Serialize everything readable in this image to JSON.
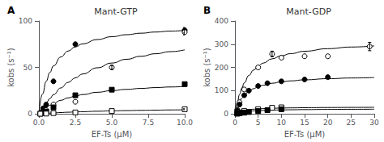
{
  "chart_data": [
    {
      "type": "scatter",
      "annotation": "A",
      "title": "Mant-GTP",
      "xlabel": "EF-Ts (μM)",
      "ylabel": "kobs (s⁻¹)",
      "xlim": [
        0,
        10
      ],
      "xticks": [
        {
          "value": 0,
          "label": "0.0"
        },
        2.5,
        {
          "value": 5.0,
          "label": "5.0"
        },
        7.5,
        {
          "value": 10,
          "label": "10.0"
        }
      ],
      "ylim": [
        0,
        100
      ],
      "yticks": [
        0,
        50,
        100
      ],
      "grid": false,
      "series": [
        {
          "type": "scatter",
          "marker": "circle",
          "color": "#000000",
          "x": [
            0.1,
            0.3,
            0.5,
            1.0,
            2.5,
            10.0
          ],
          "values": [
            1.0,
            6.0,
            10.0,
            35.0,
            75.0,
            90.0
          ],
          "yerr": [
            null,
            null,
            null,
            null,
            null,
            3.0
          ]
        },
        {
          "type": "line",
          "line_style": "solid",
          "color": "#000000",
          "x": [
            0,
            0.25,
            0.5,
            0.75,
            1,
            1.5,
            2,
            2.5,
            3,
            4,
            5,
            6,
            7,
            8,
            9,
            10
          ],
          "values": [
            0,
            21.3,
            35.0,
            44.55,
            51.58,
            61.25,
            67.59,
            72.06,
            75.38,
            80.0,
            83.05,
            85.22,
            86.84,
            88.09,
            89.09,
            89.91
          ]
        },
        {
          "type": "scatter",
          "marker": "open circle",
          "color": "#000000",
          "x": [
            0.1,
            0.3,
            0.5,
            1.0,
            2.5,
            5.0,
            10.0
          ],
          "values": [
            0.5,
            2.0,
            4.0,
            10.0,
            13.0,
            50.0,
            88.0
          ],
          "yerr": [
            null,
            null,
            null,
            null,
            null,
            2.0,
            3.0
          ]
        },
        {
          "type": "line",
          "line_style": "solid",
          "color": "#000000",
          "x": [
            0,
            0.25,
            0.5,
            0.75,
            1,
            1.5,
            2,
            2.5,
            3,
            4,
            5,
            6,
            7,
            8,
            9,
            10
          ],
          "values": [
            0,
            6.2,
            11.63,
            16.41,
            20.67,
            27.9,
            33.82,
            38.75,
            42.92,
            49.6,
            54.71,
            58.74,
            62.0,
            64.7,
            66.96,
            68.89
          ]
        },
        {
          "type": "scatter",
          "marker": "square",
          "color": "#000000",
          "x": [
            0.1,
            0.3,
            0.5,
            1.0,
            2.5,
            5.0,
            10.0
          ],
          "values": [
            0.2,
            1.0,
            2.5,
            7.0,
            20.0,
            26.0,
            32.0
          ],
          "yerr": [
            null,
            null,
            null,
            null,
            null,
            null,
            1.5
          ]
        },
        {
          "type": "line",
          "line_style": "solid",
          "color": "#000000",
          "x": [
            0,
            0.25,
            0.5,
            0.75,
            1,
            1.5,
            2,
            2.5,
            3,
            4,
            5,
            6,
            7,
            8,
            9,
            10
          ],
          "values": [
            0,
            3.67,
            6.67,
            9.15,
            11.25,
            14.59,
            17.14,
            19.15,
            20.77,
            23.23,
            25.0,
            26.34,
            27.39,
            28.24,
            28.93,
            29.51
          ]
        },
        {
          "type": "scatter",
          "marker": "open square",
          "color": "#000000",
          "x": [
            0.1,
            0.5,
            1.0,
            2.5,
            5.0,
            10.0
          ],
          "values": [
            0.1,
            0.3,
            0.8,
            1.5,
            3.0,
            5.0
          ],
          "yerr": [
            null,
            null,
            null,
            null,
            null,
            0.5
          ]
        },
        {
          "type": "line",
          "line_style": "solid",
          "color": "#000000",
          "x": [
            0,
            0.25,
            0.5,
            0.75,
            1,
            1.5,
            2,
            2.5,
            3,
            4,
            5,
            6,
            7,
            8,
            9,
            10
          ],
          "values": [
            0,
            0.28,
            0.54,
            0.78,
            1.0,
            1.4,
            1.75,
            2.06,
            2.33,
            2.8,
            3.18,
            3.5,
            3.77,
            4.0,
            4.2,
            4.38
          ]
        }
      ]
    },
    {
      "type": "scatter",
      "annotation": "B",
      "title": "Mant-GDP",
      "xlabel": "EF-Ts (μM)",
      "ylabel": "kobs (s⁻¹)",
      "xlim": [
        0,
        30
      ],
      "xticks": [
        0,
        5,
        10,
        15,
        20,
        25,
        30
      ],
      "ylim": [
        0,
        400
      ],
      "yticks": [
        0,
        100,
        200,
        300,
        400
      ],
      "grid": false,
      "series": [
        {
          "type": "scatter",
          "marker": "open circle",
          "color": "#000000",
          "x": [
            0.5,
            1.0,
            2.0,
            5.0,
            8.0,
            10.0,
            15.0,
            20.0,
            29.0
          ],
          "values": [
            18.0,
            50.0,
            105.0,
            200.0,
            258.0,
            242.0,
            248.0,
            248.0,
            290.0
          ],
          "yerr": [
            null,
            null,
            null,
            null,
            12.0,
            null,
            null,
            null,
            18.0
          ]
        },
        {
          "type": "line",
          "line_style": "solid",
          "color": "#000000",
          "x": [
            0,
            0.5,
            1,
            1.5,
            2,
            3,
            4,
            5,
            6,
            8,
            10,
            12,
            15,
            20,
            25,
            30
          ],
          "values": [
            0,
            48.48,
            84.21,
            111.63,
            133.33,
            165.52,
            188.24,
            205.13,
            218.18,
            237.04,
            250.0,
            259.46,
            269.66,
            280.7,
            287.77,
            292.68
          ]
        },
        {
          "type": "scatter",
          "marker": "circle",
          "color": "#000000",
          "x": [
            0.5,
            1.0,
            2.0,
            3.0,
            5.0,
            7.0,
            10.0,
            15.0,
            20.0
          ],
          "values": [
            15.0,
            40.0,
            80.0,
            100.0,
            120.0,
            132.0,
            140.0,
            148.0,
            158.0
          ],
          "yerr": [
            null,
            null,
            null,
            null,
            5.0,
            null,
            6.0,
            6.0,
            5.0
          ]
        },
        {
          "type": "line",
          "line_style": "solid",
          "color": "#000000",
          "x": [
            0,
            0.5,
            1,
            1.5,
            2,
            3,
            4,
            5,
            6,
            8,
            10,
            12,
            15,
            20,
            25,
            30
          ],
          "values": [
            0,
            31.11,
            52.5,
            68.11,
            80.0,
            96.92,
            108.39,
            116.67,
            122.93,
            131.76,
            137.7,
            141.97,
            146.51,
            151.35,
            154.41,
            156.52
          ]
        },
        {
          "type": "scatter",
          "marker": "open square",
          "color": "#000000",
          "x": [
            0.5,
            1.0,
            2.0,
            5.0,
            8.0,
            10.0
          ],
          "values": [
            2.0,
            6.0,
            12.0,
            20.0,
            26.0,
            28.0
          ],
          "yerr": [
            null,
            null,
            null,
            null,
            null,
            null
          ]
        },
        {
          "type": "line",
          "line_style": "solid",
          "color": "#000000",
          "x": [
            0,
            0.5,
            1,
            1.5,
            2,
            3,
            4,
            5,
            6,
            8,
            10,
            12,
            15,
            20,
            25,
            30
          ],
          "values": [
            0,
            6,
            10,
            12.86,
            15,
            18,
            20,
            21.43,
            22.5,
            24,
            25,
            25.71,
            26.47,
            27.27,
            27.78,
            28.13
          ]
        },
        {
          "type": "scatter",
          "marker": "square",
          "color": "#000000",
          "x": [
            0.5,
            1.0,
            2.0,
            3.0,
            5.0,
            7.0,
            10.0
          ],
          "values": [
            0.5,
            2.0,
            5.0,
            8.0,
            12.0,
            16.0,
            20.0
          ],
          "yerr": [
            null,
            null,
            null,
            null,
            null,
            null,
            null
          ]
        },
        {
          "type": "line",
          "line_style": "solid",
          "color": "#000000",
          "x": [
            0,
            0.5,
            1,
            1.5,
            2,
            3,
            4,
            5,
            6,
            8,
            10,
            12,
            15,
            20,
            25,
            30
          ],
          "values": [
            0,
            3.14,
            5.5,
            7.33,
            8.8,
            11,
            12.57,
            13.75,
            14.67,
            16,
            16.92,
            17.6,
            18.33,
            19.13,
            19.64,
            20
          ]
        }
      ]
    }
  ]
}
